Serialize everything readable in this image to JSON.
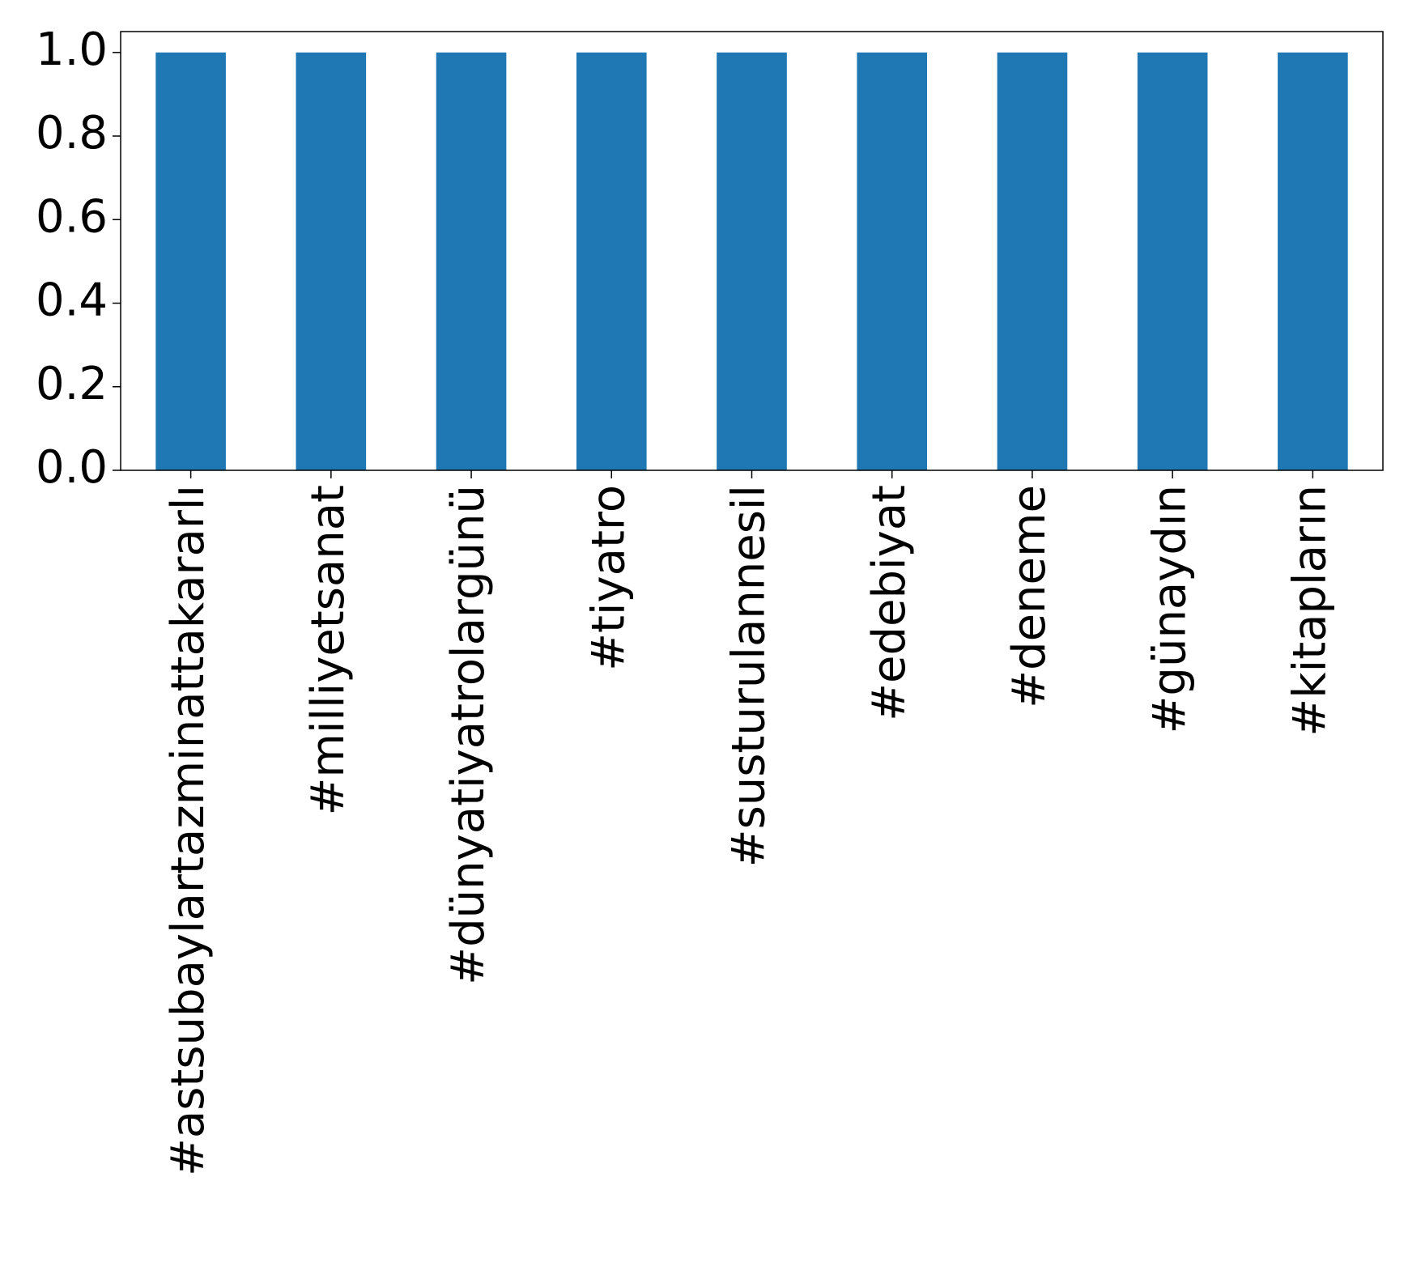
{
  "chart_data": {
    "type": "bar",
    "categories": [
      "#astsubaylartazminattakararlı",
      "#milliyetsanat",
      "#dünyatiyatrolargünü",
      "#tiyatro",
      "#susturulannesil",
      "#edebiyat",
      "#deneme",
      "#günaydın",
      "#kitapların"
    ],
    "values": [
      1,
      1,
      1,
      1,
      1,
      1,
      1,
      1,
      1
    ],
    "color": "#1f77b4",
    "ylim": [
      0,
      1.05
    ],
    "yticks": [
      {
        "value": 0,
        "label": "0.0"
      },
      0.2,
      0.4,
      0.6,
      0.8,
      {
        "value": 1,
        "label": "1.0"
      }
    ],
    "grid": false
  }
}
